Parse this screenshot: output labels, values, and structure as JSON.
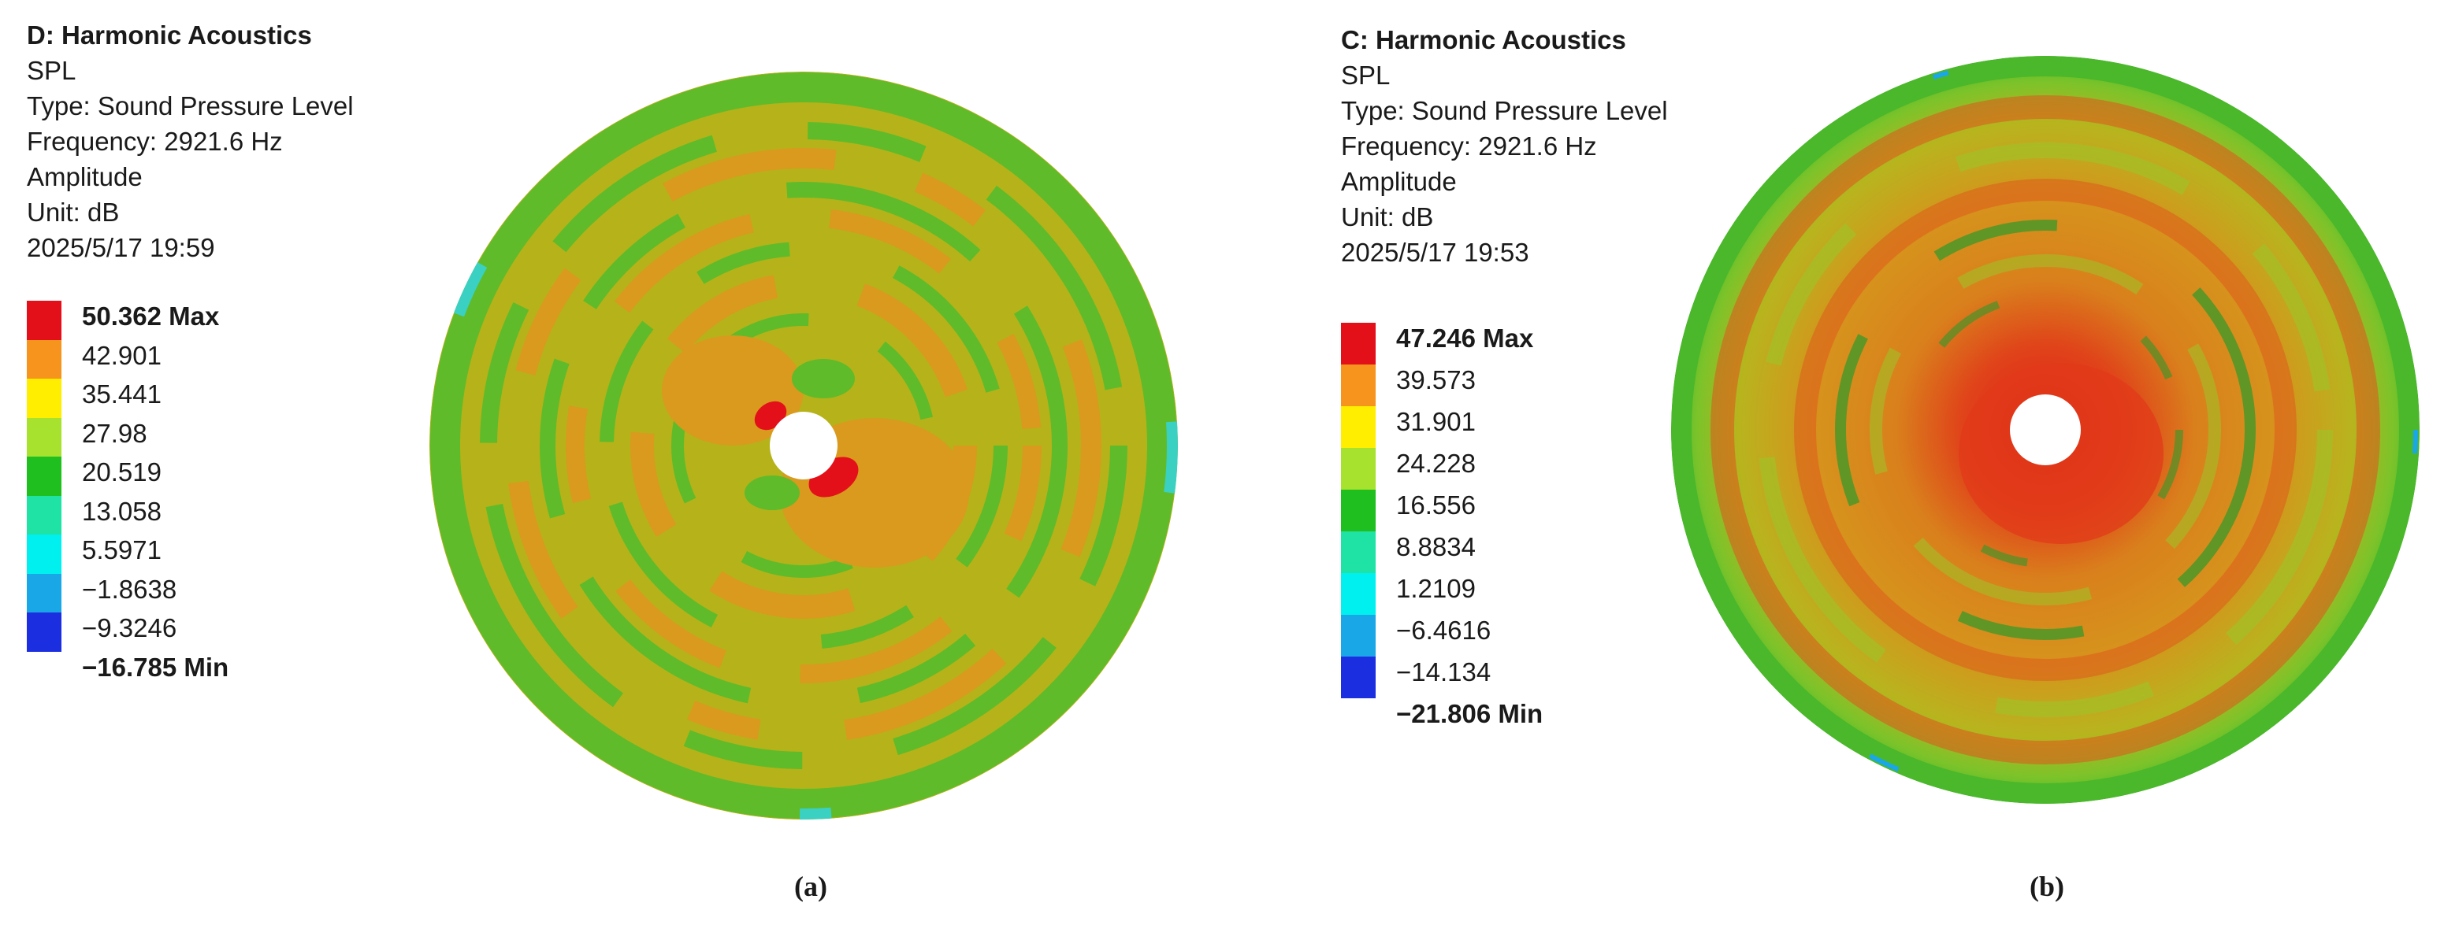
{
  "panels": [
    {
      "title": "D: Harmonic Acoustics",
      "info": [
        "SPL",
        "Type: Sound Pressure Level",
        "Frequency: 2921.6 Hz",
        "Amplitude",
        "Unit: dB",
        "2025/5/17 19:59"
      ],
      "legend": [
        {
          "label": "50.362 Max",
          "color": "#e3101a",
          "strong": true
        },
        {
          "label": "42.901",
          "color": "#f7941d",
          "strong": false
        },
        {
          "label": "35.441",
          "color": "#ffee00",
          "strong": false
        },
        {
          "label": "27.98",
          "color": "#a6e22e",
          "strong": false
        },
        {
          "label": "20.519",
          "color": "#1fbf1f",
          "strong": false
        },
        {
          "label": "13.058",
          "color": "#1ee3a4",
          "strong": false
        },
        {
          "label": "5.5971",
          "color": "#00f0f0",
          "strong": false
        },
        {
          "label": "−1.8638",
          "color": "#1aa7e8",
          "strong": false
        },
        {
          "label": "−9.3246",
          "color": "#1c2fe0",
          "strong": false
        },
        {
          "label": "−16.785 Min",
          "color": null,
          "strong": true
        }
      ],
      "caption": "(a)"
    },
    {
      "title": "C: Harmonic Acoustics",
      "info": [
        "SPL",
        "Type: Sound Pressure Level",
        "Frequency: 2921.6 Hz",
        "Amplitude",
        "Unit: dB",
        "2025/5/17 19:53"
      ],
      "legend": [
        {
          "label": "47.246 Max",
          "color": "#e3101a",
          "strong": true
        },
        {
          "label": "39.573",
          "color": "#f7941d",
          "strong": false
        },
        {
          "label": "31.901",
          "color": "#ffee00",
          "strong": false
        },
        {
          "label": "24.228",
          "color": "#a6e22e",
          "strong": false
        },
        {
          "label": "16.556",
          "color": "#1fbf1f",
          "strong": false
        },
        {
          "label": "8.8834",
          "color": "#1ee3a4",
          "strong": false
        },
        {
          "label": "1.2109",
          "color": "#00f0f0",
          "strong": false
        },
        {
          "label": "−6.4616",
          "color": "#1aa7e8",
          "strong": false
        },
        {
          "label": "−14.134",
          "color": "#1c2fe0",
          "strong": false
        },
        {
          "label": "−21.806 Min",
          "color": null,
          "strong": true
        }
      ],
      "caption": "(b)"
    }
  ],
  "colors": {
    "disc_a_base": "#b5b319",
    "disc_a_band": "#d99a1e",
    "disc_a_green": "#5fbb2a",
    "disc_a_hot": "#e3101a",
    "disc_a_cyan": "#3ad1c2",
    "disc_b_outer": "#66c22e",
    "disc_b_mid": "#d8a01c",
    "disc_b_hot": "#e23a1a",
    "disc_b_dark": "#2e9a2a"
  }
}
